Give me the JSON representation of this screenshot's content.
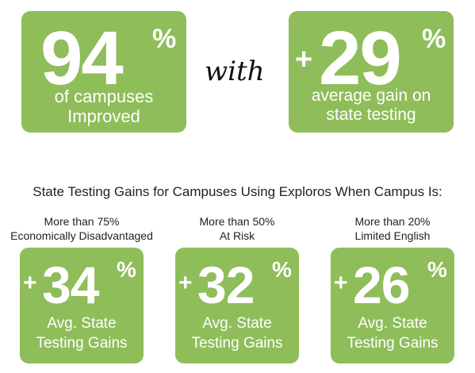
{
  "top": {
    "left_box": {
      "value": "94",
      "percent": "%",
      "caption_line1": "of campuses",
      "caption_line2": "Improved"
    },
    "connector": "with",
    "right_box": {
      "plus": "+",
      "value": "29",
      "percent": "%",
      "caption_line1": "average gain on",
      "caption_line2": "state testing"
    }
  },
  "section_heading": "State Testing Gains for Campuses Using Exploros When Campus Is:",
  "groups": [
    {
      "condition_line1": "More than 75%",
      "condition_line2": "Economically Disadvantaged",
      "plus": "+",
      "value": "34",
      "percent": "%",
      "caption_line1": "Avg. State",
      "caption_line2": "Testing Gains"
    },
    {
      "condition_line1": "More than 50%",
      "condition_line2": "At Risk",
      "plus": "+",
      "value": "32",
      "percent": "%",
      "caption_line1": "Avg. State",
      "caption_line2": "Testing Gains"
    },
    {
      "condition_line1": "More than 20%",
      "condition_line2": "Limited English",
      "plus": "+",
      "value": "26",
      "percent": "%",
      "caption_line1": "Avg. State",
      "caption_line2": "Testing Gains"
    }
  ],
  "colors": {
    "box_green": "#8fbd5a",
    "text_white": "#ffffff",
    "text_dark": "#222222"
  }
}
